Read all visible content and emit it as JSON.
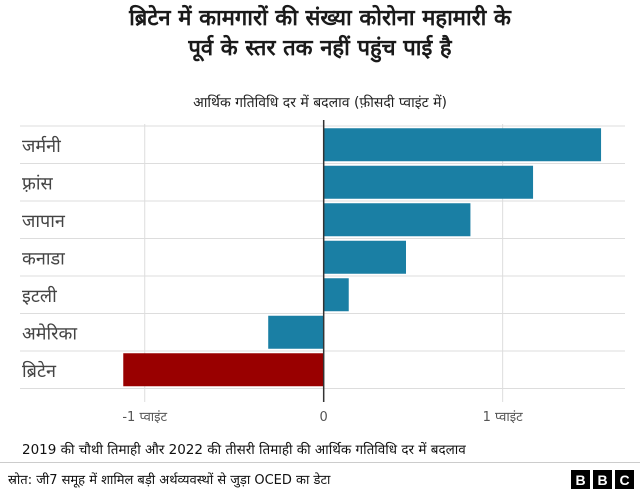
{
  "title_line1": "ब्रिटेन में कामगारों की संख्या कोरोना महामारी के",
  "title_line2": "पूर्व के स्तर तक नहीं पहुंच पाई है",
  "subtitle": "आर्थिक गतिविधि दर में बदलाव (फ़ीसदी प्वाइंट में)",
  "caption": "2019 की चौथी तिमाही और 2022 की तीसरी तिमाही की आर्थिक गतिविधि दर में बदलाव",
  "source": "स्रोत: जी7 समूह में शामिल बड़ी अर्थव्यवस्थों से जुड़ा OCED का डेटा",
  "logo_letters": [
    "B",
    "B",
    "C"
  ],
  "colors": {
    "positive": "#1a7fa4",
    "negative": "#990000",
    "grid": "#dddddd",
    "zero": "#333333"
  },
  "chart_data": {
    "type": "bar",
    "orientation": "horizontal",
    "categories": [
      "जर्मनी",
      "फ़्रांस",
      "जापान",
      "कनाडा",
      "इटली",
      "अमेरिका",
      "ब्रिटेन"
    ],
    "values": [
      1.55,
      1.17,
      0.82,
      0.46,
      0.14,
      -0.31,
      -1.12
    ],
    "xlim": [
      -1.25,
      1.6
    ],
    "xticks": [
      {
        "value": -1,
        "label": "-1 प्वाइंट"
      },
      {
        "value": 0,
        "label": "0"
      },
      {
        "value": 1,
        "label": "1 प्वाइंट"
      }
    ],
    "grid": true
  }
}
